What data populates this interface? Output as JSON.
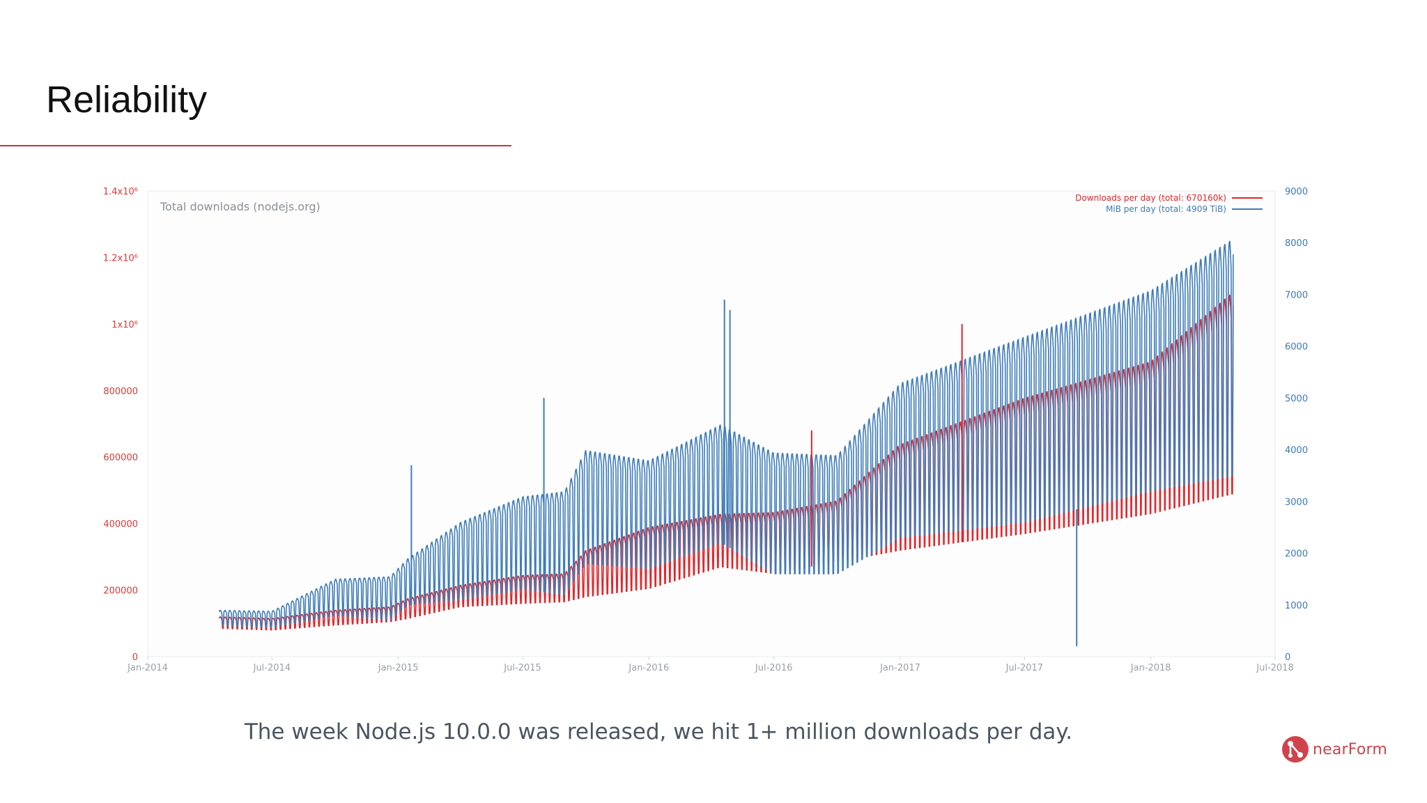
{
  "slide": {
    "title": "Reliability",
    "caption": "The week Node.js 10.0.0 was released, we hit 1+ million downloads per day.",
    "logo_text": "nearForm",
    "logo_icon": "nearform-logo-icon",
    "accent_color": "#c9343d"
  },
  "chart_data": {
    "type": "line",
    "title": "Total downloads (nodejs.org)",
    "x_tick_labels": [
      "Jan-2014",
      "Jul-2014",
      "Jan-2015",
      "Jul-2015",
      "Jan-2016",
      "Jul-2016",
      "Jan-2017",
      "Jul-2017",
      "Jan-2018",
      "Jul-2018"
    ],
    "x_range": [
      "2014-01-01",
      "2018-07-01"
    ],
    "y_left": {
      "range": [
        0,
        1400000
      ],
      "tick_values": [
        0,
        200000,
        400000,
        600000,
        800000,
        1000000,
        1200000,
        1400000
      ],
      "tick_labels": [
        "0",
        "200000",
        "400000",
        "600000",
        "800000",
        "1x10⁶",
        "1.2x10⁶",
        "1.4x10⁶"
      ],
      "color": "#d83a3a"
    },
    "y_right": {
      "range": [
        0,
        9000
      ],
      "tick_values": [
        0,
        1000,
        2000,
        3000,
        4000,
        5000,
        6000,
        7000,
        8000,
        9000
      ],
      "tick_labels": [
        "0",
        "1000",
        "2000",
        "3000",
        "4000",
        "5000",
        "6000",
        "7000",
        "8000",
        "9000"
      ],
      "color": "#3a78b5"
    },
    "grid": false,
    "legend_position": "top-right",
    "series": [
      {
        "name": "Downloads per day (total: 670160k)",
        "axis": "left",
        "color": "#e0262b",
        "pattern": "weekly",
        "points": [
          {
            "date": "2014-04-15",
            "weekday": 120000,
            "weekend": 85000
          },
          {
            "date": "2014-07-01",
            "weekday": 115000,
            "weekend": 80000
          },
          {
            "date": "2014-10-01",
            "weekday": 140000,
            "weekend": 95000
          },
          {
            "date": "2014-12-20",
            "weekday": 150000,
            "weekend": 105000
          },
          {
            "date": "2015-01-15",
            "weekday": 175000,
            "weekend": 115000
          },
          {
            "date": "2015-04-01",
            "weekday": 215000,
            "weekend": 150000
          },
          {
            "date": "2015-07-01",
            "weekday": 245000,
            "weekend": 160000
          },
          {
            "date": "2015-08-31",
            "weekday": 250000,
            "weekend": 165000
          },
          {
            "date": "2015-10-01",
            "weekday": 320000,
            "weekend": 180000
          },
          {
            "date": "2016-01-01",
            "weekday": 390000,
            "weekend": 205000
          },
          {
            "date": "2016-04-15",
            "weekday": 430000,
            "weekend": 270000
          },
          {
            "date": "2016-07-01",
            "weekday": 435000,
            "weekend": 250000
          },
          {
            "date": "2016-10-01",
            "weekday": 470000,
            "weekend": 285000
          },
          {
            "date": "2017-01-01",
            "weekday": 640000,
            "weekend": 320000
          },
          {
            "date": "2017-07-01",
            "weekday": 780000,
            "weekend": 370000
          },
          {
            "date": "2018-01-01",
            "weekday": 890000,
            "weekend": 430000
          },
          {
            "date": "2018-05-01",
            "weekday": 1100000,
            "weekend": 490000
          }
        ]
      },
      {
        "name": "MiB per day (total: 4909 TiB)",
        "axis": "right",
        "color": "#3e7cb8",
        "pattern": "weekly",
        "points": [
          {
            "date": "2014-04-15",
            "weekday": 900,
            "weekend": 600
          },
          {
            "date": "2014-07-01",
            "weekday": 880,
            "weekend": 560
          },
          {
            "date": "2014-10-01",
            "weekday": 1500,
            "weekend": 800
          },
          {
            "date": "2014-12-20",
            "weekday": 1550,
            "weekend": 700
          },
          {
            "date": "2015-01-15",
            "weekday": 1900,
            "weekend": 1000
          },
          {
            "date": "2015-04-01",
            "weekday": 2600,
            "weekend": 1100
          },
          {
            "date": "2015-07-01",
            "weekday": 3100,
            "weekend": 1300
          },
          {
            "date": "2015-08-31",
            "weekday": 3200,
            "weekend": 1200
          },
          {
            "date": "2015-10-01",
            "weekday": 4000,
            "weekend": 1800
          },
          {
            "date": "2016-01-01",
            "weekday": 3800,
            "weekend": 1700
          },
          {
            "date": "2016-04-15",
            "weekday": 4500,
            "weekend": 2200
          },
          {
            "date": "2016-07-01",
            "weekday": 3950,
            "weekend": 1600
          },
          {
            "date": "2016-10-01",
            "weekday": 3900,
            "weekend": 1600
          },
          {
            "date": "2017-01-01",
            "weekday": 5300,
            "weekend": 2300
          },
          {
            "date": "2017-07-01",
            "weekday": 6200,
            "weekend": 2600
          },
          {
            "date": "2018-01-01",
            "weekday": 7100,
            "weekend": 3200
          },
          {
            "date": "2018-05-01",
            "weekday": 8100,
            "weekend": 3500
          }
        ]
      }
    ],
    "spikes": [
      {
        "series": 1,
        "date": "2015-01-20",
        "value": 3700
      },
      {
        "series": 1,
        "date": "2015-08-01",
        "value": 5000
      },
      {
        "series": 1,
        "date": "2016-04-20",
        "value": 6900
      },
      {
        "series": 1,
        "date": "2016-04-28",
        "value": 6700
      },
      {
        "series": 1,
        "date": "2017-09-15",
        "value": 200
      },
      {
        "series": 0,
        "date": "2016-08-25",
        "value": 680000
      },
      {
        "series": 0,
        "date": "2017-04-01",
        "value": 1000000
      }
    ]
  }
}
